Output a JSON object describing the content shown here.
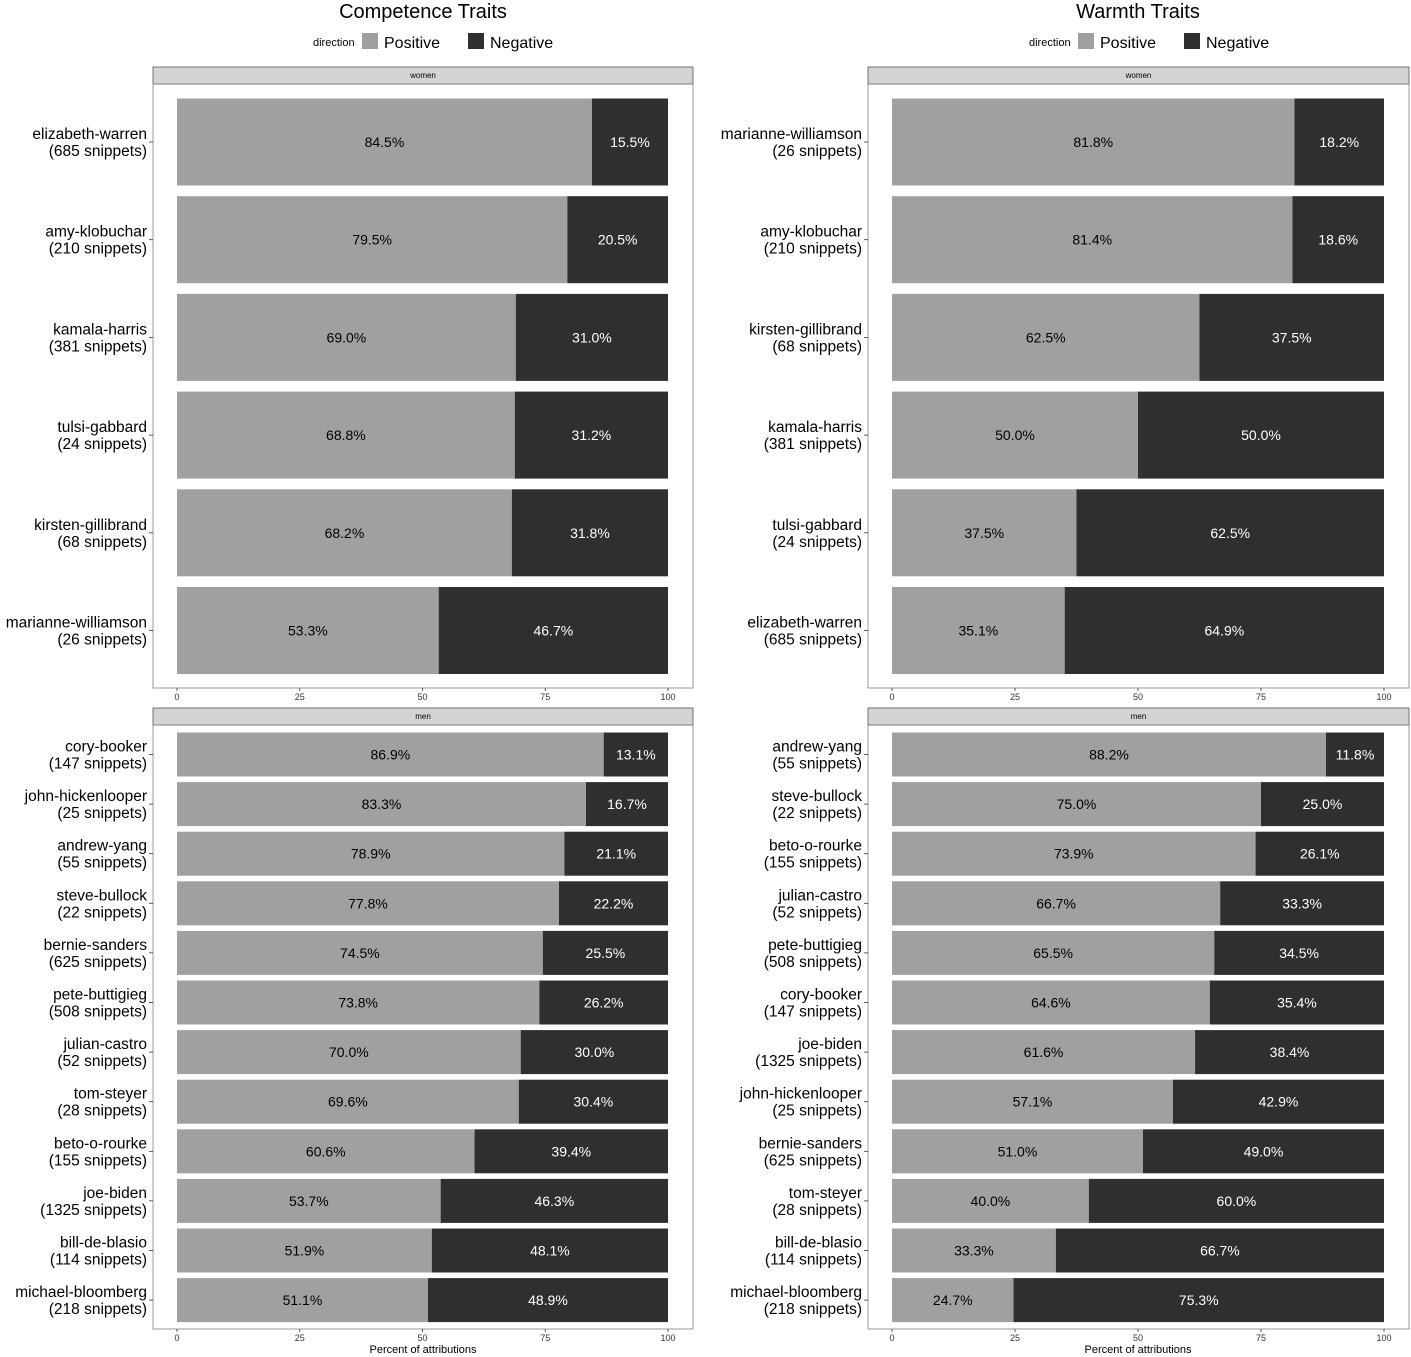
{
  "legend": {
    "title": "direction",
    "entries": [
      {
        "label": "Positive",
        "color": "#a0a0a0"
      },
      {
        "label": "Negative",
        "color": "#2f2f2f"
      }
    ]
  },
  "colors": {
    "positive": "#a0a0a0",
    "negative": "#2f2f2f",
    "strip": "#d4d4d4",
    "panel_border": "#7f7f7f",
    "label_on_positive": "#000000",
    "label_on_negative": "#ffffff"
  },
  "chart_data": [
    {
      "type": "bar",
      "orientation": "horizontal",
      "stacked": true,
      "title": "Competence Traits",
      "xlabel": "Percent of attributions",
      "xlim": [
        0,
        100
      ],
      "xticks": [
        0,
        25,
        50,
        75,
        100
      ],
      "grid": false,
      "legend_position": "top",
      "facets": [
        {
          "strip": "women",
          "categories": [
            "elizabeth-warren\n(685 snippets)",
            "amy-klobuchar\n(210 snippets)",
            "kamala-harris\n(381 snippets)",
            "tulsi-gabbard\n(24 snippets)",
            "kirsten-gillibrand\n(68 snippets)",
            "marianne-williamson\n(26 snippets)"
          ],
          "series": [
            {
              "name": "Positive",
              "values": [
                84.5,
                79.5,
                69.0,
                68.8,
                68.2,
                53.3
              ],
              "labels": [
                "84.5%",
                "79.5%",
                "69.0%",
                "68.8%",
                "68.2%",
                "53.3%"
              ]
            },
            {
              "name": "Negative",
              "values": [
                15.5,
                20.5,
                31.0,
                31.2,
                31.8,
                46.7
              ],
              "labels": [
                "15.5%",
                "20.5%",
                "31.0%",
                "31.2%",
                "31.8%",
                "46.7%"
              ]
            }
          ]
        },
        {
          "strip": "men",
          "categories": [
            "cory-booker\n(147 snippets)",
            "john-hickenlooper\n(25 snippets)",
            "andrew-yang\n(55 snippets)",
            "steve-bullock\n(22 snippets)",
            "bernie-sanders\n(625 snippets)",
            "pete-buttigieg\n(508 snippets)",
            "julian-castro\n(52 snippets)",
            "tom-steyer\n(28 snippets)",
            "beto-o-rourke\n(155 snippets)",
            "joe-biden\n(1325 snippets)",
            "bill-de-blasio\n(114 snippets)",
            "michael-bloomberg\n(218 snippets)"
          ],
          "series": [
            {
              "name": "Positive",
              "values": [
                86.9,
                83.3,
                78.9,
                77.8,
                74.5,
                73.8,
                70.0,
                69.6,
                60.6,
                53.7,
                51.9,
                51.1
              ],
              "labels": [
                "86.9%",
                "83.3%",
                "78.9%",
                "77.8%",
                "74.5%",
                "73.8%",
                "70.0%",
                "69.6%",
                "60.6%",
                "53.7%",
                "51.9%",
                "51.1%"
              ]
            },
            {
              "name": "Negative",
              "values": [
                13.1,
                16.7,
                21.1,
                22.2,
                25.5,
                26.2,
                30.0,
                30.4,
                39.4,
                46.3,
                48.1,
                48.9
              ],
              "labels": [
                "13.1%",
                "16.7%",
                "21.1%",
                "22.2%",
                "25.5%",
                "26.2%",
                "30.0%",
                "30.4%",
                "39.4%",
                "46.3%",
                "48.1%",
                "48.9%"
              ]
            }
          ]
        }
      ]
    },
    {
      "type": "bar",
      "orientation": "horizontal",
      "stacked": true,
      "title": "Warmth Traits",
      "xlabel": "Percent of attributions",
      "xlim": [
        0,
        100
      ],
      "xticks": [
        0,
        25,
        50,
        75,
        100
      ],
      "grid": false,
      "legend_position": "top",
      "facets": [
        {
          "strip": "women",
          "categories": [
            "marianne-williamson\n(26 snippets)",
            "amy-klobuchar\n(210 snippets)",
            "kirsten-gillibrand\n(68 snippets)",
            "kamala-harris\n(381 snippets)",
            "tulsi-gabbard\n(24 snippets)",
            "elizabeth-warren\n(685 snippets)"
          ],
          "series": [
            {
              "name": "Positive",
              "values": [
                81.8,
                81.4,
                62.5,
                50.0,
                37.5,
                35.1
              ],
              "labels": [
                "81.8%",
                "81.4%",
                "62.5%",
                "50.0%",
                "37.5%",
                "35.1%"
              ]
            },
            {
              "name": "Negative",
              "values": [
                18.2,
                18.6,
                37.5,
                50.0,
                62.5,
                64.9
              ],
              "labels": [
                "18.2%",
                "18.6%",
                "37.5%",
                "50.0%",
                "62.5%",
                "64.9%"
              ]
            }
          ]
        },
        {
          "strip": "men",
          "categories": [
            "andrew-yang\n(55 snippets)",
            "steve-bullock\n(22 snippets)",
            "beto-o-rourke\n(155 snippets)",
            "julian-castro\n(52 snippets)",
            "pete-buttigieg\n(508 snippets)",
            "cory-booker\n(147 snippets)",
            "joe-biden\n(1325 snippets)",
            "john-hickenlooper\n(25 snippets)",
            "bernie-sanders\n(625 snippets)",
            "tom-steyer\n(28 snippets)",
            "bill-de-blasio\n(114 snippets)",
            "michael-bloomberg\n(218 snippets)"
          ],
          "series": [
            {
              "name": "Positive",
              "values": [
                88.2,
                75.0,
                73.9,
                66.7,
                65.5,
                64.6,
                61.6,
                57.1,
                51.0,
                40.0,
                33.3,
                24.7
              ],
              "labels": [
                "88.2%",
                "75.0%",
                "73.9%",
                "66.7%",
                "65.5%",
                "64.6%",
                "61.6%",
                "57.1%",
                "51.0%",
                "40.0%",
                "33.3%",
                "24.7%"
              ]
            },
            {
              "name": "Negative",
              "values": [
                11.8,
                25.0,
                26.1,
                33.3,
                34.5,
                35.4,
                38.4,
                42.9,
                49.0,
                60.0,
                66.7,
                75.3
              ],
              "labels": [
                "11.8%",
                "25.0%",
                "26.1%",
                "33.3%",
                "34.5%",
                "35.4%",
                "38.4%",
                "42.9%",
                "49.0%",
                "60.0%",
                "66.7%",
                "75.3%"
              ]
            }
          ]
        }
      ]
    }
  ]
}
